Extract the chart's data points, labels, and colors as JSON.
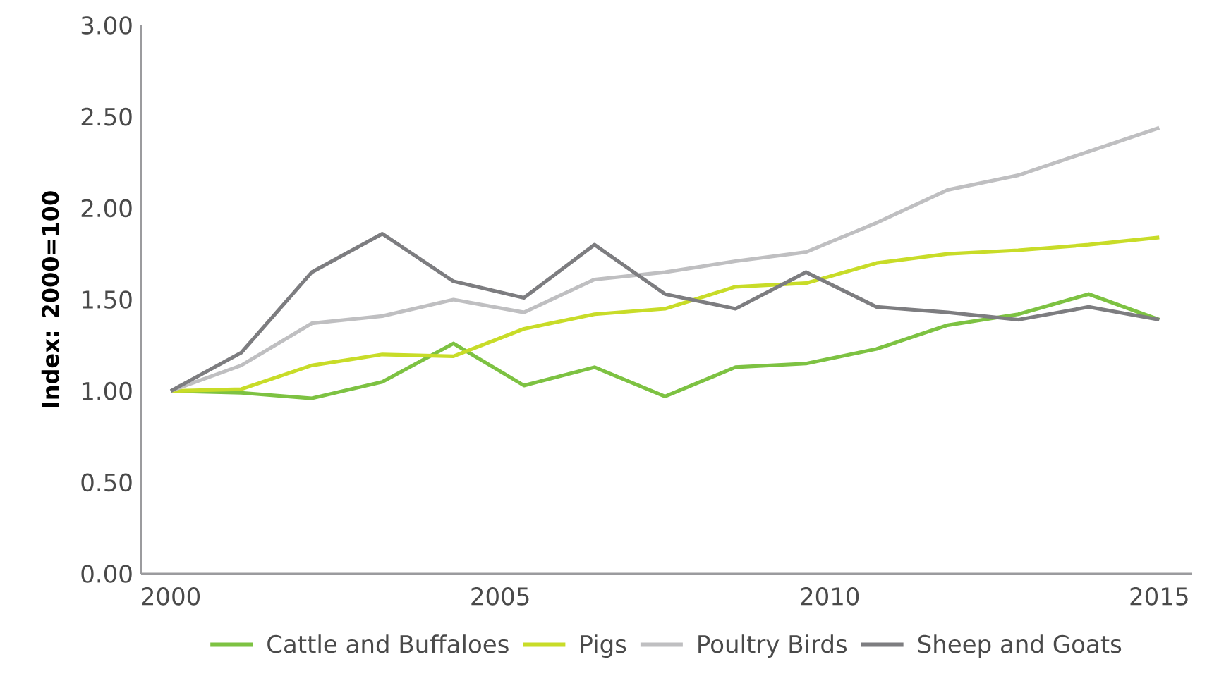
{
  "chart_data": {
    "type": "line",
    "ylabel": "Index: 2000=100",
    "x": [
      2000,
      2001.07,
      2002.14,
      2003.21,
      2004.29,
      2005.36,
      2006.43,
      2007.5,
      2008.57,
      2009.64,
      2010.71,
      2011.79,
      2012.86,
      2013.93,
      2015
    ],
    "series": [
      {
        "name": "Cattle and Buffaloes",
        "color": "#7dc242",
        "values": [
          1.0,
          0.99,
          0.96,
          1.05,
          1.26,
          1.03,
          1.13,
          0.97,
          1.13,
          1.15,
          1.23,
          1.36,
          1.42,
          1.53,
          1.39
        ]
      },
      {
        "name": "Pigs",
        "color": "#c8dc28",
        "values": [
          1.0,
          1.01,
          1.14,
          1.2,
          1.19,
          1.34,
          1.42,
          1.45,
          1.57,
          1.59,
          1.7,
          1.75,
          1.77,
          1.8,
          1.84
        ]
      },
      {
        "name": "Poultry Birds",
        "color": "#bfbfc1",
        "values": [
          1.0,
          1.14,
          1.37,
          1.41,
          1.5,
          1.43,
          1.61,
          1.65,
          1.71,
          1.76,
          1.92,
          2.1,
          2.18,
          2.31,
          2.44
        ]
      },
      {
        "name": "Sheep and Goats",
        "color": "#7d7d80",
        "values": [
          1.0,
          1.21,
          1.65,
          1.86,
          1.6,
          1.51,
          1.8,
          1.53,
          1.45,
          1.65,
          1.46,
          1.43,
          1.39,
          1.46,
          1.39
        ]
      }
    ],
    "xlim": [
      1999.55,
      2015.5
    ],
    "xticks": [
      2000,
      2005,
      2010,
      2015
    ],
    "ylim": [
      0,
      3
    ],
    "yticks": [
      {
        "value": 0,
        "label": "0.00"
      },
      {
        "value": 0.5,
        "label": "0.50"
      },
      {
        "value": 1,
        "label": "1.00"
      },
      {
        "value": 1.5,
        "label": "1.50"
      },
      {
        "value": 2,
        "label": "2.00"
      },
      {
        "value": 2.5,
        "label": "2.50"
      },
      {
        "value": 3,
        "label": "3.00"
      }
    ],
    "legend": "bottom",
    "line_style": "solid"
  }
}
